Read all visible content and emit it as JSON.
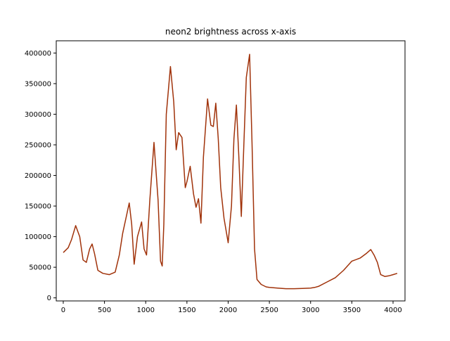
{
  "chart_data": {
    "type": "line",
    "title": "neon2 brightness across x-axis",
    "xlabel": "",
    "ylabel": "",
    "xlim": [
      -85,
      4145
    ],
    "ylim": [
      -5000,
      420000
    ],
    "xticks": [
      0,
      500,
      1000,
      1500,
      2000,
      2500,
      3000,
      3500,
      4000
    ],
    "xtick_labels": [
      "0",
      "500",
      "1000",
      "1500",
      "2000",
      "2500",
      "3000",
      "3500",
      "4000"
    ],
    "yticks": [
      0,
      50000,
      100000,
      150000,
      200000,
      250000,
      300000,
      350000,
      400000
    ],
    "ytick_labels": [
      "0",
      "50000",
      "100000",
      "150000",
      "200000",
      "250000",
      "300000",
      "350000",
      "400000"
    ],
    "grid": false,
    "color": "#a0320a",
    "series": [
      {
        "x": [
          0,
          60,
          100,
          150,
          200,
          240,
          280,
          320,
          350,
          380,
          420,
          480,
          560,
          630,
          680,
          720,
          760,
          800,
          830,
          860,
          900,
          950,
          980,
          1010,
          1050,
          1100,
          1150,
          1180,
          1200,
          1220,
          1250,
          1300,
          1340,
          1370,
          1400,
          1440,
          1480,
          1500,
          1540,
          1580,
          1610,
          1640,
          1670,
          1700,
          1750,
          1790,
          1820,
          1850,
          1880,
          1910,
          1950,
          2000,
          2040,
          2070,
          2100,
          2130,
          2160,
          2190,
          2220,
          2260,
          2290,
          2320,
          2350,
          2400,
          2460,
          2500,
          2600,
          2700,
          2800,
          2900,
          3000,
          3050,
          3100,
          3200,
          3300,
          3400,
          3500,
          3600,
          3680,
          3730,
          3770,
          3810,
          3850,
          3900,
          3950,
          4000,
          4050
        ],
        "y": [
          74000,
          82000,
          95000,
          118000,
          100000,
          62000,
          58000,
          80000,
          88000,
          72000,
          45000,
          40000,
          38000,
          42000,
          70000,
          105000,
          130000,
          155000,
          120000,
          55000,
          100000,
          124000,
          80000,
          70000,
          160000,
          254000,
          160000,
          60000,
          52000,
          120000,
          300000,
          378000,
          320000,
          242000,
          270000,
          262000,
          180000,
          190000,
          215000,
          170000,
          148000,
          162000,
          122000,
          230000,
          325000,
          282000,
          280000,
          318000,
          260000,
          180000,
          130000,
          90000,
          150000,
          260000,
          315000,
          230000,
          133000,
          250000,
          360000,
          398000,
          250000,
          80000,
          30000,
          22000,
          18000,
          17000,
          16000,
          15000,
          15000,
          15500,
          16000,
          17000,
          19000,
          26000,
          33000,
          45000,
          60000,
          65000,
          73000,
          79000,
          70000,
          58000,
          38000,
          35000,
          36000,
          38000,
          40000
        ]
      }
    ]
  }
}
